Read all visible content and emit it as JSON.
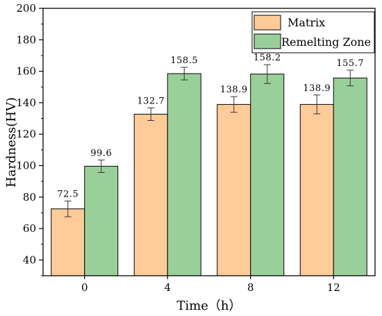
{
  "chart_data": {
    "type": "bar",
    "xlabel": "Time（h）",
    "ylabel": "Hardness(HV)",
    "categories": [
      "0",
      "4",
      "8",
      "12"
    ],
    "ylim": [
      30,
      200
    ],
    "yticks": [
      40,
      60,
      80,
      100,
      120,
      140,
      160,
      180,
      200
    ],
    "legend_position": "top-right",
    "grid": false,
    "series": [
      {
        "name": "Matrix",
        "color": "#FFCC99",
        "values": [
          72.5,
          132.7,
          138.9,
          138.9
        ],
        "labels": [
          "72.5",
          "132.7",
          "138.9",
          "138.9"
        ],
        "errors": [
          5,
          4,
          5,
          6
        ]
      },
      {
        "name": "Remelting Zone",
        "color": "#99D099",
        "values": [
          99.6,
          158.5,
          158.2,
          155.7
        ],
        "labels": [
          "99.6",
          "158.5",
          "158.2",
          "155.7"
        ],
        "errors": [
          4,
          4,
          6,
          5
        ]
      }
    ]
  }
}
